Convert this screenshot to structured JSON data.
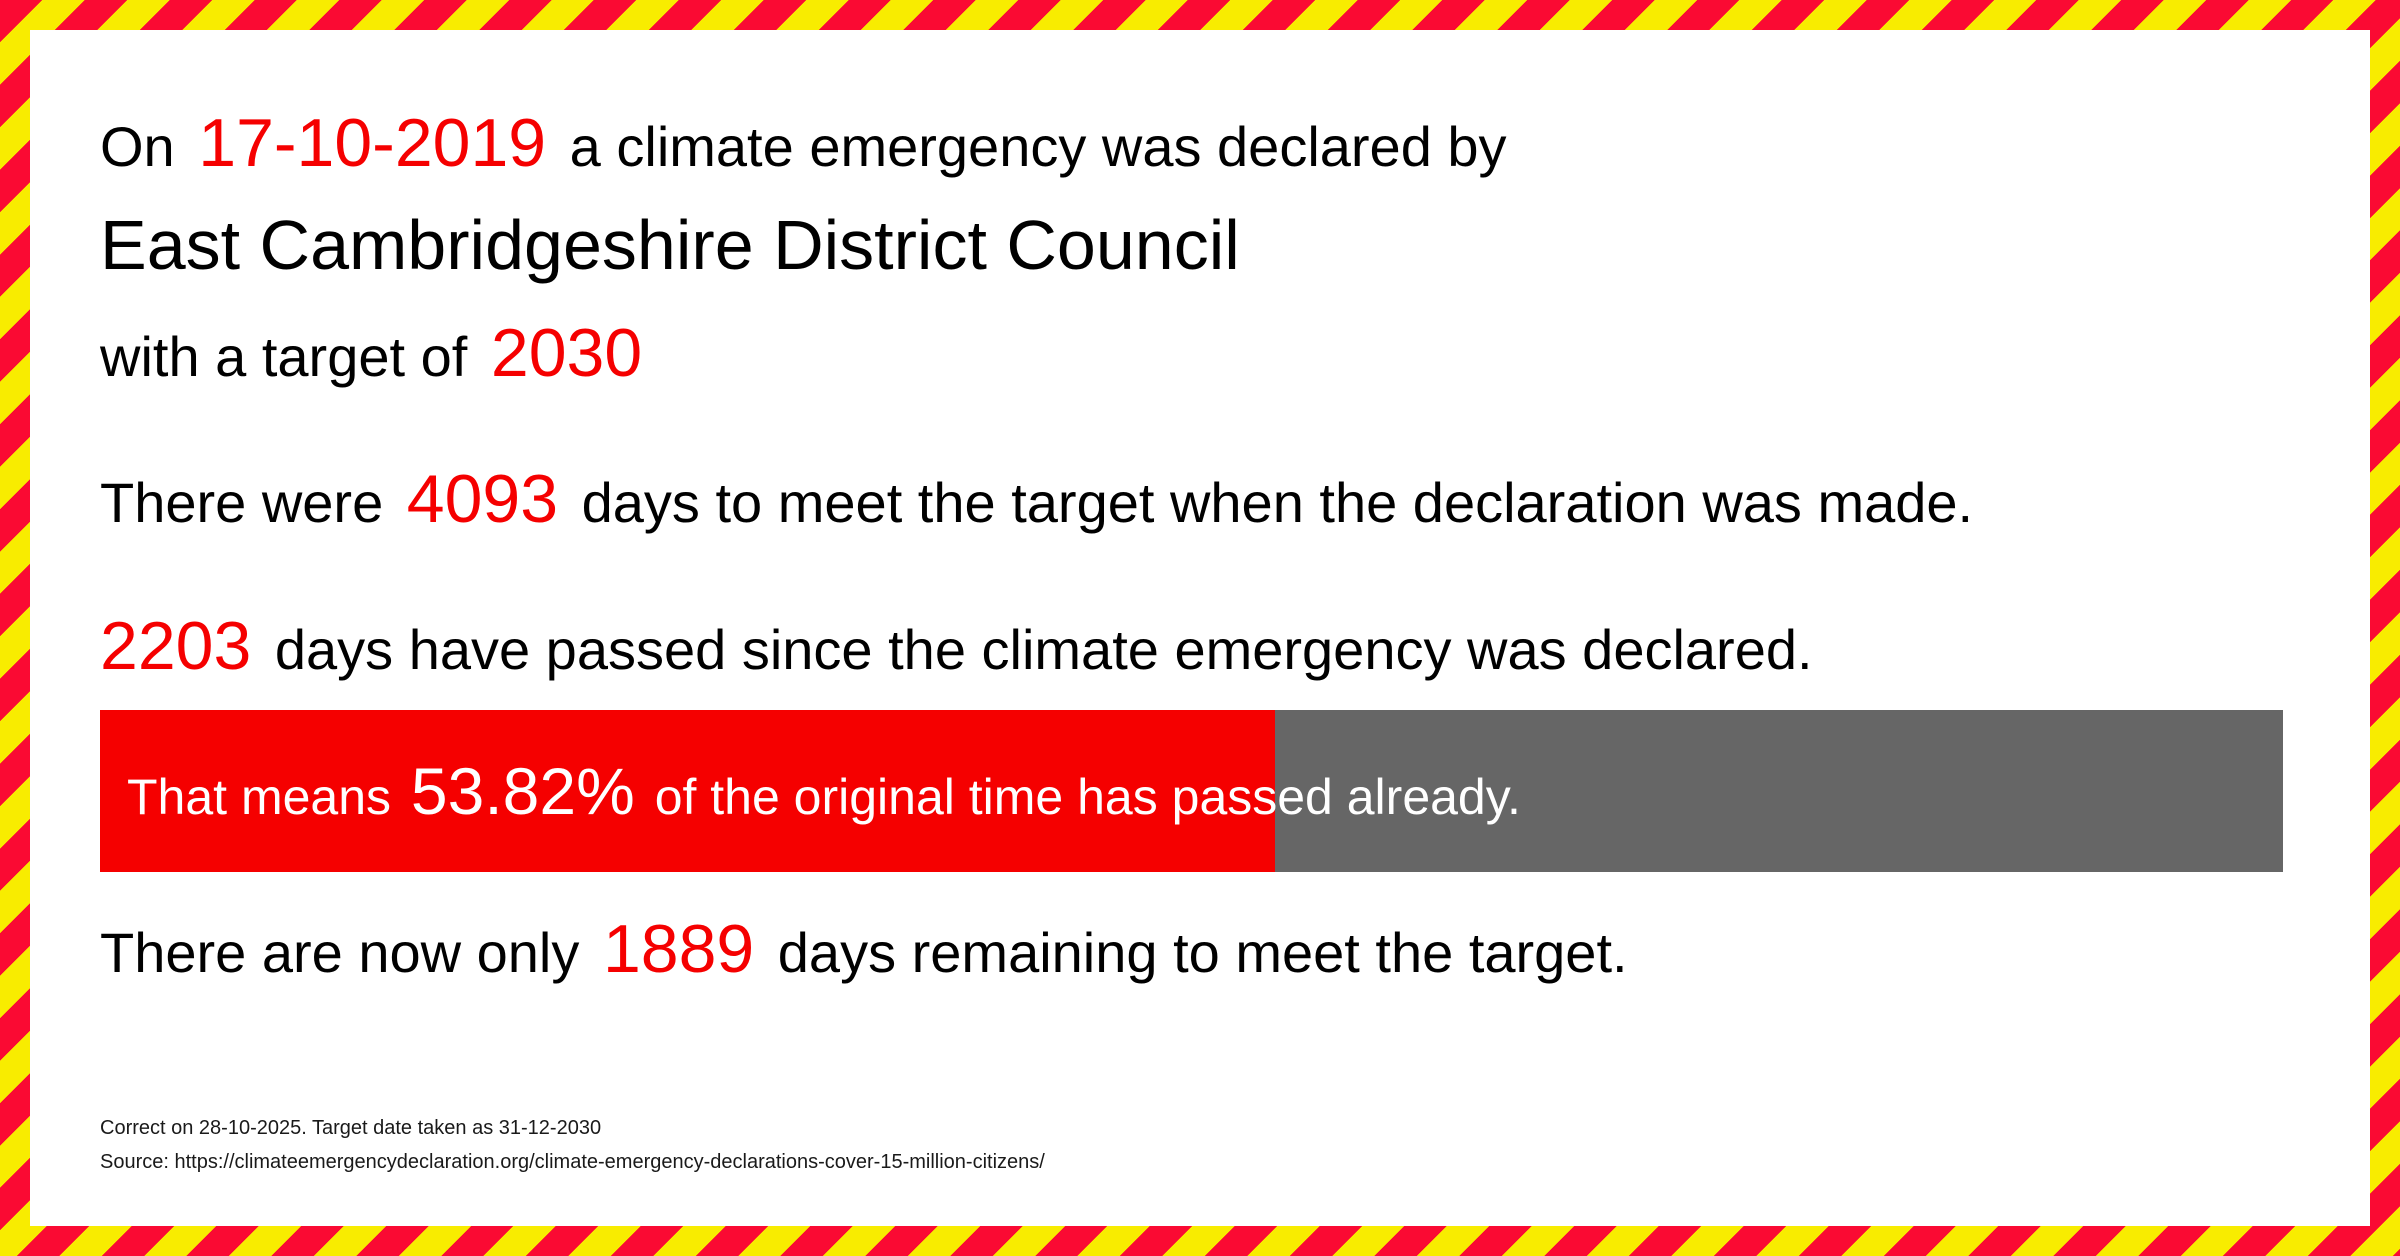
{
  "colors": {
    "border_red": "#fa0a33",
    "border_yellow": "#f8ec00",
    "accent_red": "#f50000",
    "bar_gray": "#666666",
    "bar_text": "#ffffff",
    "text": "#000000",
    "footer_text": "#1a1a1a"
  },
  "declaration": {
    "prefix": "On",
    "date": "17-10-2019",
    "suffix": "a climate emergency was declared by",
    "council": "East Cambridgeshire District Council",
    "target_prefix": "with a target of",
    "target_year": "2030"
  },
  "stats": {
    "total": {
      "prefix": "There were",
      "value": "4093",
      "suffix": "days to meet the target when the declaration was made."
    },
    "passed": {
      "value": "2203",
      "suffix": "days have passed since the climate emergency was declared."
    },
    "progress": {
      "prefix": "That means",
      "percent": "53.82%",
      "suffix": "of the original time has passed already.",
      "fill_percent": 53.82
    },
    "remaining": {
      "prefix": "There are now only",
      "value": "1889",
      "suffix": "days remaining to meet the target."
    }
  },
  "footer": {
    "line1": "Correct on 28-10-2025. Target date taken as 31-12-2030",
    "line2": "Source: https://climateemergencydeclaration.org/climate-emergency-declarations-cover-15-million-citizens/"
  }
}
